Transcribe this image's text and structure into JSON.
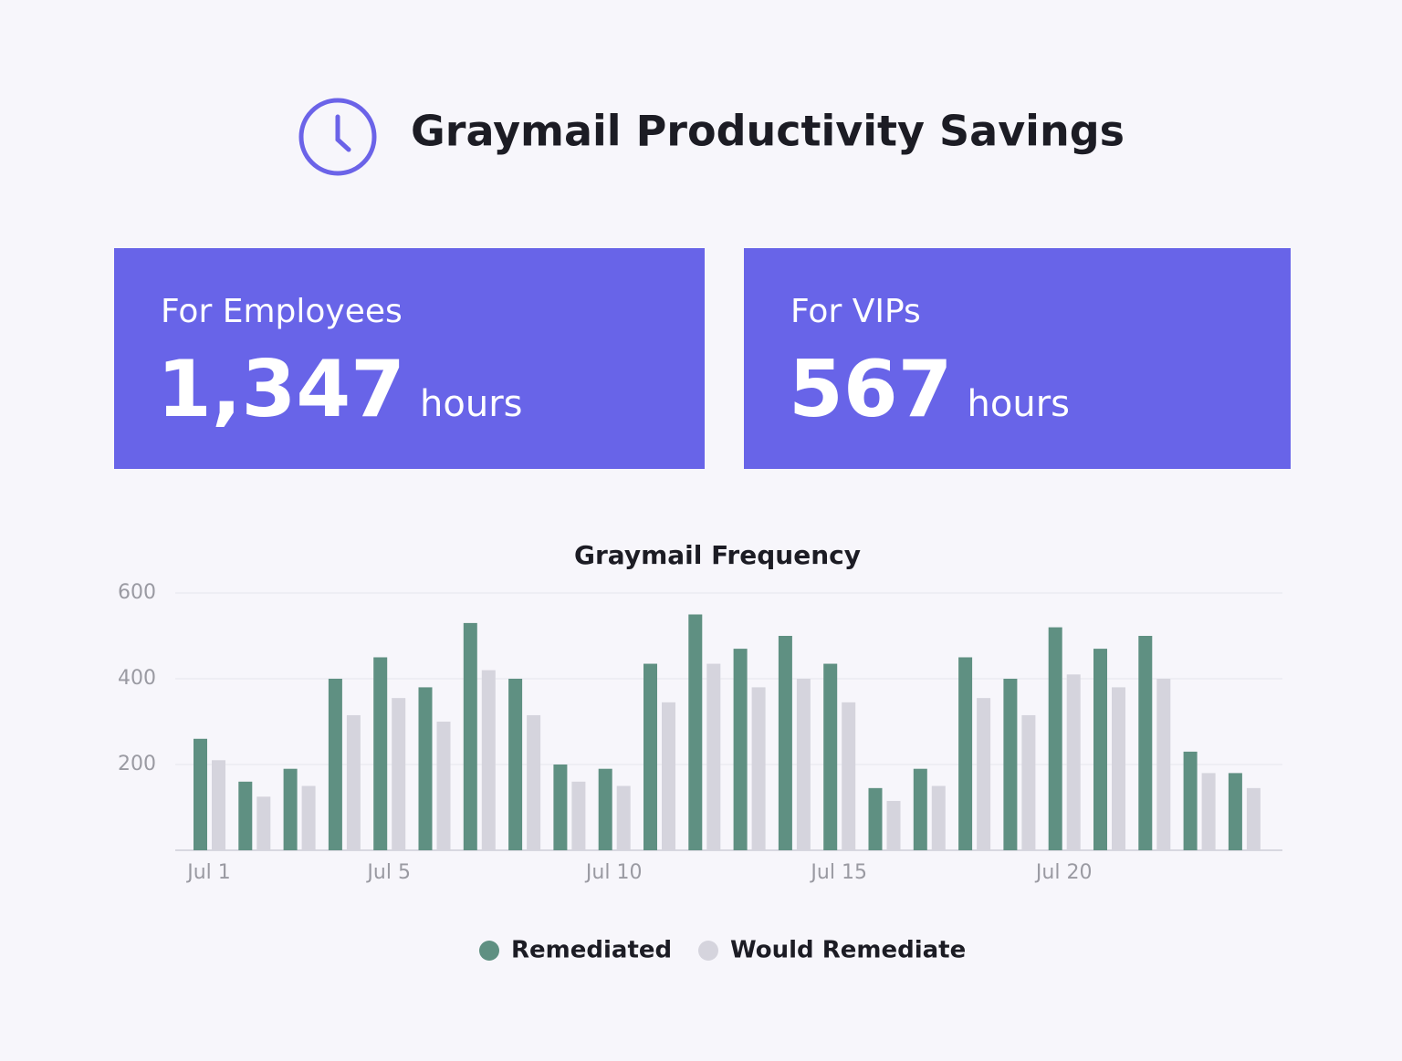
{
  "header": {
    "title": "Graymail Productivity Savings"
  },
  "cards": [
    {
      "label": "For Employees",
      "value": "1,347",
      "unit": "hours"
    },
    {
      "label": "For VIPs",
      "value": "567",
      "unit": "hours"
    }
  ],
  "chart_data": {
    "type": "bar",
    "title": "Graymail Frequency",
    "categories": [
      "Jul 1",
      null,
      null,
      null,
      "Jul 5",
      null,
      null,
      null,
      null,
      "Jul 10",
      null,
      null,
      null,
      null,
      "Jul 15",
      null,
      null,
      null,
      null,
      "Jul 20",
      null,
      null,
      null,
      null
    ],
    "series": [
      {
        "name": "Remediated",
        "color": "#5f9082",
        "values": [
          260,
          160,
          190,
          400,
          450,
          380,
          530,
          400,
          200,
          190,
          435,
          550,
          470,
          500,
          435,
          145,
          190,
          450,
          400,
          520,
          470,
          500,
          230,
          180
        ]
      },
      {
        "name": "Would Remediate",
        "color": "#d5d4dd",
        "values": [
          210,
          125,
          150,
          315,
          355,
          300,
          420,
          315,
          160,
          150,
          345,
          435,
          380,
          400,
          345,
          115,
          150,
          355,
          315,
          410,
          380,
          400,
          180,
          145
        ]
      }
    ],
    "ylim": [
      0,
      600
    ],
    "yticks": [
      200,
      400,
      600
    ],
    "grid": true
  }
}
